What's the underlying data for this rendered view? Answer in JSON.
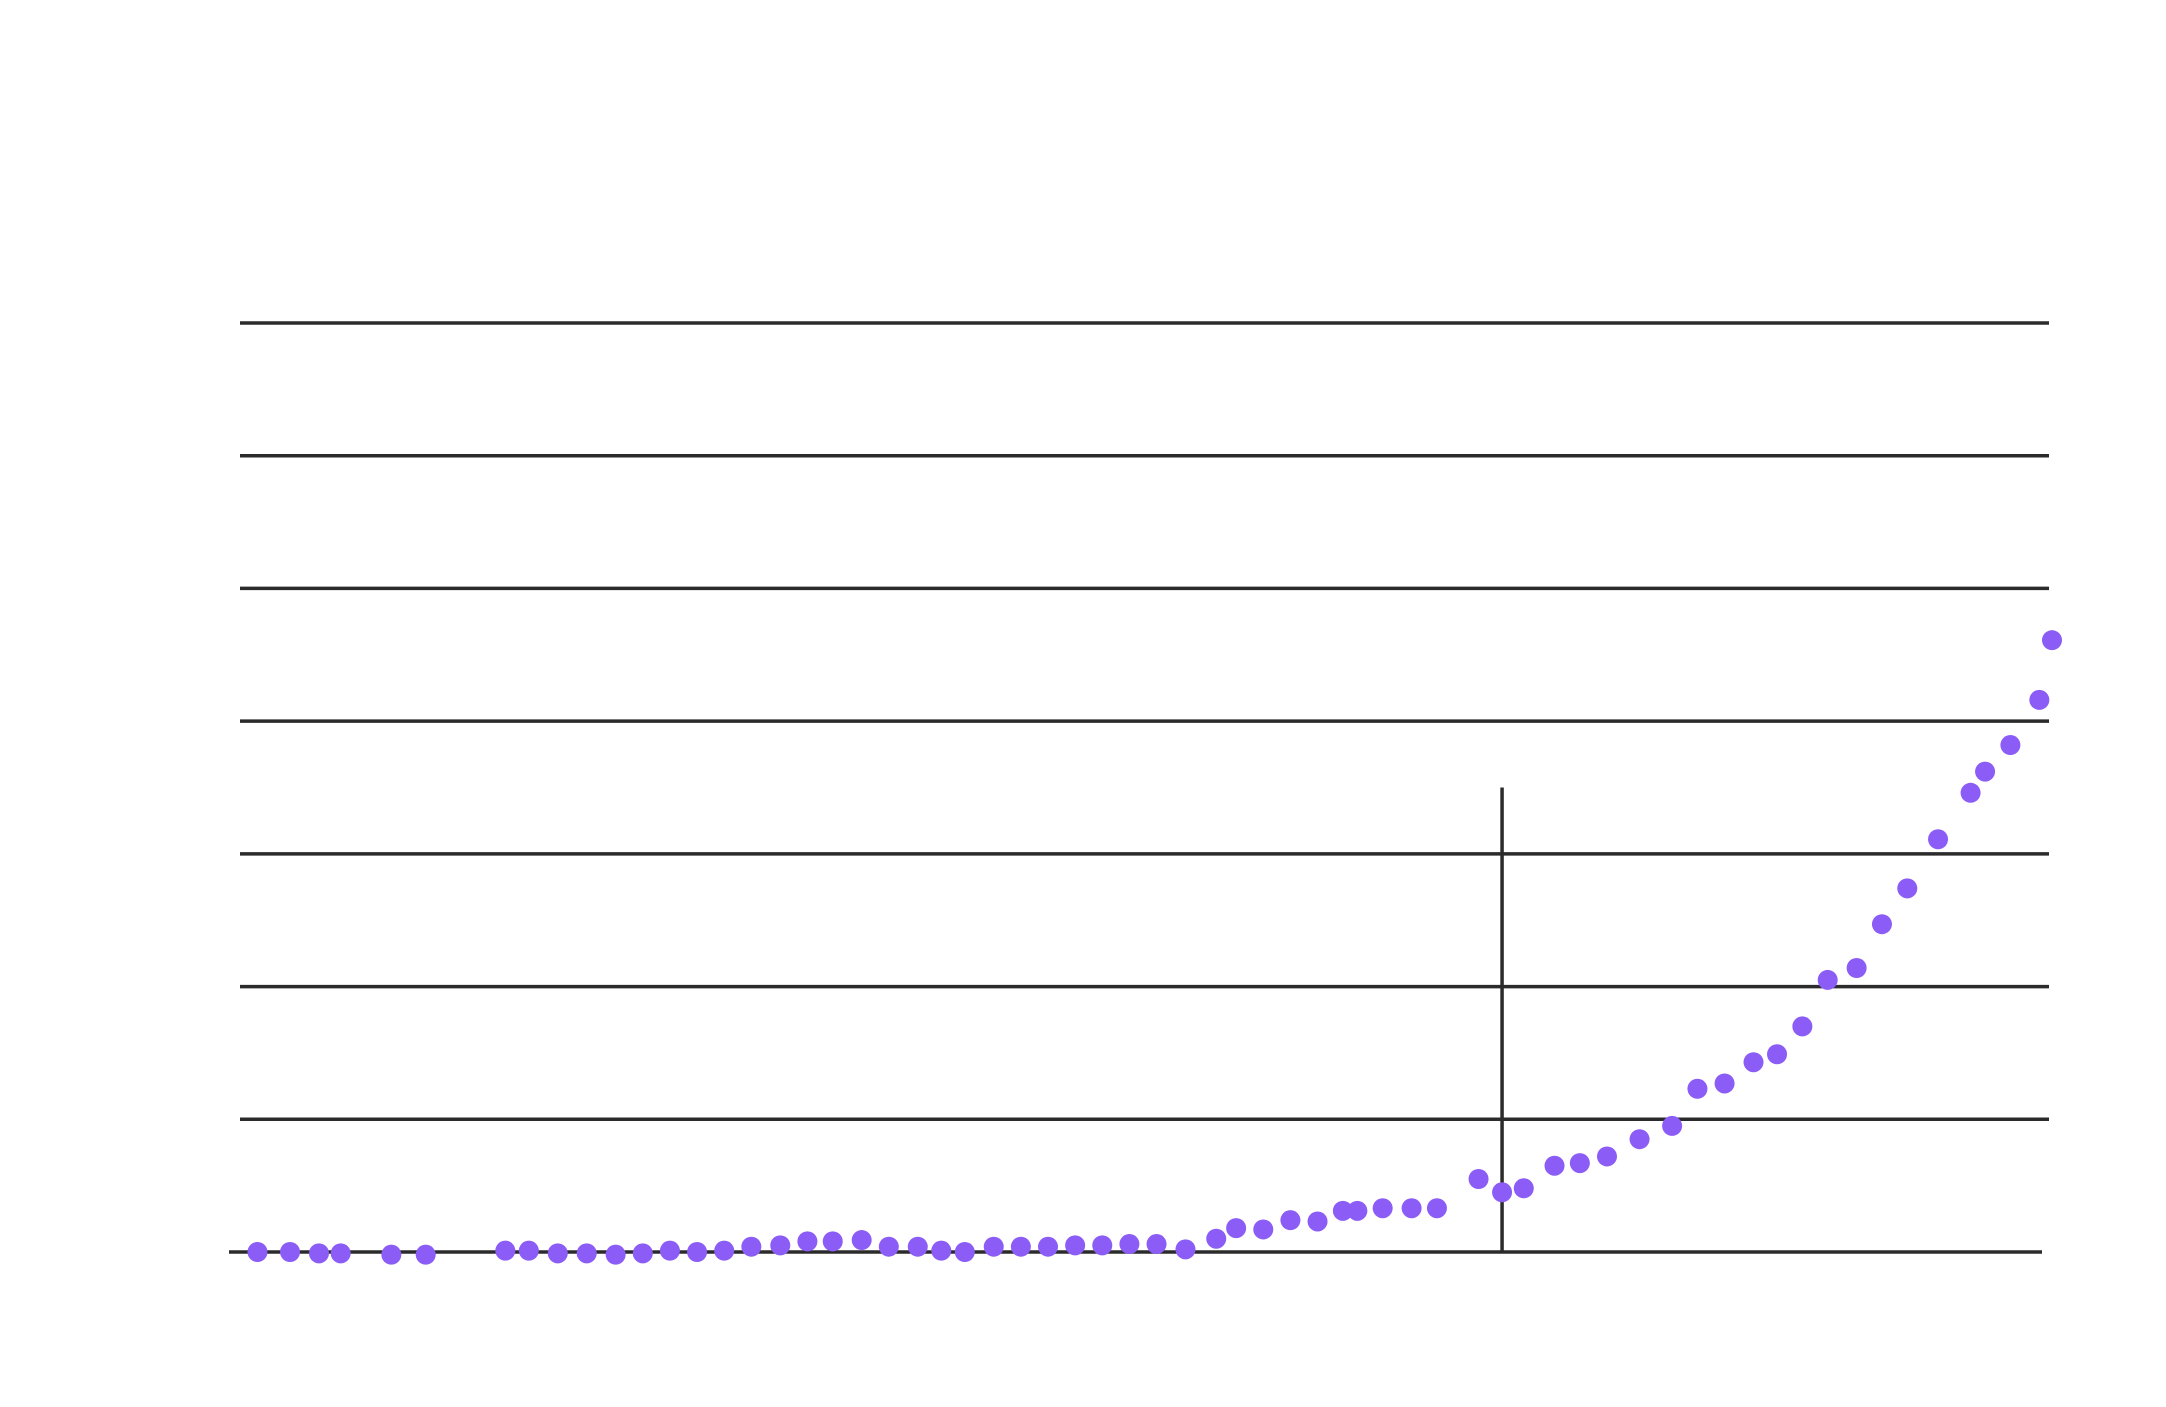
{
  "chart_data": {
    "type": "scatter",
    "title": "",
    "xlabel": "",
    "ylabel": "",
    "grid": true,
    "xlim": [
      0,
      100
    ],
    "ylim": [
      0,
      7
    ],
    "marker_x": 69.6,
    "point_color": "#8b5cf6",
    "line_color": "#2b2b2b",
    "series": [
      {
        "x": [
          0.8,
          2.6,
          4.2,
          5.4,
          8.2,
          10.1,
          14.5,
          15.8,
          17.4,
          19.0,
          20.6,
          22.1,
          23.6,
          25.1,
          26.6,
          28.1,
          29.7,
          31.2,
          32.6,
          34.2,
          35.7,
          37.3,
          38.6,
          39.9,
          41.5,
          43.0,
          44.5,
          46.0,
          47.5,
          49.0,
          50.5,
          52.1,
          53.8,
          54.9,
          56.4,
          57.9,
          59.4,
          60.8,
          61.6,
          63.0,
          64.6,
          66.0,
          68.3,
          69.6,
          70.8,
          72.5,
          73.9,
          75.4,
          77.2,
          79.0,
          80.4,
          81.9,
          83.5,
          84.8,
          86.2,
          87.6,
          89.2,
          90.6,
          92.0,
          93.7,
          95.5,
          96.3,
          97.7,
          99.3,
          100.0
        ],
        "y": [
          0.0,
          0.0,
          -0.01,
          -0.01,
          -0.02,
          -0.02,
          0.01,
          0.01,
          -0.01,
          -0.01,
          -0.02,
          -0.01,
          0.01,
          0.0,
          0.01,
          0.04,
          0.05,
          0.08,
          0.08,
          0.09,
          0.04,
          0.04,
          0.01,
          0.0,
          0.04,
          0.04,
          0.04,
          0.05,
          0.05,
          0.06,
          0.06,
          0.02,
          0.1,
          0.18,
          0.17,
          0.24,
          0.23,
          0.31,
          0.31,
          0.33,
          0.33,
          0.33,
          0.55,
          0.45,
          0.48,
          0.65,
          0.67,
          0.72,
          0.85,
          0.95,
          1.23,
          1.27,
          1.43,
          1.49,
          1.7,
          2.05,
          2.14,
          2.47,
          2.74,
          3.11,
          3.46,
          3.62,
          3.82,
          4.16,
          4.61
        ]
      }
    ]
  }
}
